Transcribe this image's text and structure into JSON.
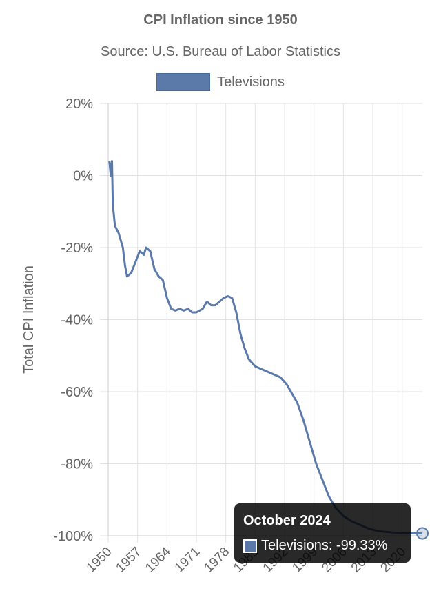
{
  "chart_data": {
    "type": "line",
    "title": "CPI Inflation since 1950",
    "subtitle": "Source: U.S. Bureau of Labor Statistics",
    "ylabel": "Total CPI Inflation",
    "xlabel": "",
    "ylim": [
      -100,
      20
    ],
    "xlim": [
      1950,
      2024.8
    ],
    "y_ticks": [
      "20%",
      "0%",
      "-20%",
      "-40%",
      "-60%",
      "-80%",
      "-100%"
    ],
    "y_tick_values": [
      20,
      0,
      -20,
      -40,
      -60,
      -80,
      -100
    ],
    "x_ticks": [
      "1950",
      "1957",
      "1964",
      "1971",
      "1978",
      "1985",
      "1992",
      "1999",
      "2006",
      "2013",
      "2020"
    ],
    "x_tick_values": [
      1950,
      1957,
      1964,
      1971,
      1978,
      1985,
      1992,
      1999,
      2006,
      2013,
      2020
    ],
    "grid": true,
    "legend_position": "top-center",
    "series": [
      {
        "name": "Televisions",
        "color": "#5b7aa9",
        "points": [
          [
            1950.3,
            4
          ],
          [
            1950.6,
            0
          ],
          [
            1950.9,
            4
          ],
          [
            1951.1,
            -8
          ],
          [
            1951.6,
            -14
          ],
          [
            1952.5,
            -16
          ],
          [
            1953.5,
            -20
          ],
          [
            1954.0,
            -25
          ],
          [
            1954.5,
            -28
          ],
          [
            1955.5,
            -27
          ],
          [
            1956.5,
            -24
          ],
          [
            1957.5,
            -21
          ],
          [
            1958.5,
            -22
          ],
          [
            1959.0,
            -20
          ],
          [
            1960.0,
            -21
          ],
          [
            1961.0,
            -26
          ],
          [
            1962.0,
            -28
          ],
          [
            1963.0,
            -29
          ],
          [
            1964.0,
            -34
          ],
          [
            1965.0,
            -37
          ],
          [
            1966.0,
            -37.5
          ],
          [
            1967.0,
            -37
          ],
          [
            1968.0,
            -37.5
          ],
          [
            1969.0,
            -37
          ],
          [
            1970.0,
            -38
          ],
          [
            1971.0,
            -38
          ],
          [
            1972.5,
            -37
          ],
          [
            1973.5,
            -35
          ],
          [
            1974.5,
            -36
          ],
          [
            1975.5,
            -36
          ],
          [
            1976.5,
            -35
          ],
          [
            1977.5,
            -34
          ],
          [
            1978.5,
            -33.5
          ],
          [
            1979.5,
            -34
          ],
          [
            1980.5,
            -38
          ],
          [
            1981.5,
            -44
          ],
          [
            1982.5,
            -48
          ],
          [
            1983.5,
            -51
          ],
          [
            1985.0,
            -53
          ],
          [
            1987.0,
            -54
          ],
          [
            1989.0,
            -55
          ],
          [
            1991.0,
            -56
          ],
          [
            1992.5,
            -58
          ],
          [
            1993.5,
            -60
          ],
          [
            1995.0,
            -63
          ],
          [
            1996.5,
            -68
          ],
          [
            1998.0,
            -74
          ],
          [
            1999.5,
            -80
          ],
          [
            2000.5,
            -83
          ],
          [
            2001.5,
            -86
          ],
          [
            2002.5,
            -89
          ],
          [
            2004.0,
            -92
          ],
          [
            2006.0,
            -94.5
          ],
          [
            2008.0,
            -96
          ],
          [
            2010.0,
            -97
          ],
          [
            2012.0,
            -98
          ],
          [
            2014.0,
            -98.6
          ],
          [
            2016.0,
            -98.9
          ],
          [
            2018.0,
            -99.1
          ],
          [
            2020.0,
            -99.2
          ],
          [
            2022.0,
            -99.3
          ],
          [
            2024.8,
            -99.33
          ]
        ]
      }
    ],
    "tooltip": {
      "title": "October 2024",
      "series_name": "Televisions",
      "value_label": "Televisions: -99.33%",
      "value": -99.33
    }
  }
}
